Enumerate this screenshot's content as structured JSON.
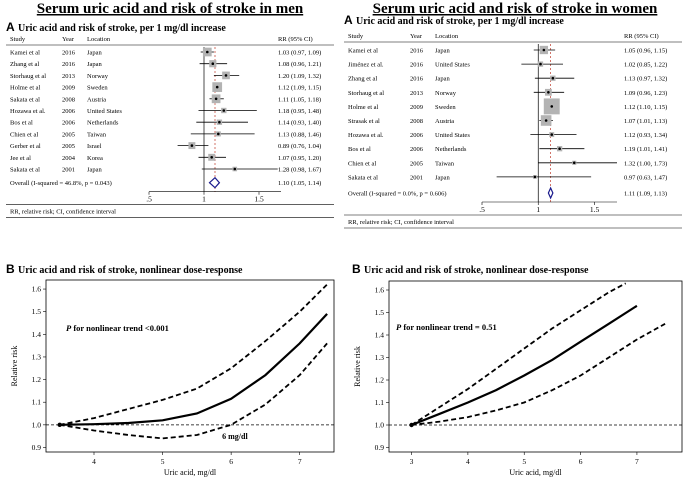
{
  "page": {
    "title_men": "Serum uric acid and risk of stroke in men",
    "title_women": "Serum uric acid and risk of stroke in women"
  },
  "chart_data": [
    {
      "id": "men-forest",
      "type": "forest",
      "panel": "A",
      "title": "Uric acid and risk of stroke, per 1 mg/dl increase",
      "headers": {
        "study": "Study",
        "year": "Year",
        "location": "Location",
        "rr": "RR (95% CI)"
      },
      "xlim": [
        0.5,
        1.7
      ],
      "xticks": [
        0.5,
        1,
        1.5
      ],
      "xtick_labels": [
        ".5",
        "1",
        "1.5"
      ],
      "reference_line": 1,
      "overall_line": 1.1,
      "rows": [
        {
          "study": "Kamei et al",
          "year": "2016",
          "location": "Japan",
          "rr_text": "1.03 (0.97, 1.09)",
          "rr": 1.03,
          "lo": 0.97,
          "hi": 1.09,
          "weight": 2.2
        },
        {
          "study": "Zhang et al",
          "year": "2016",
          "location": "Japan",
          "rr_text": "1.08 (0.96, 1.21)",
          "rr": 1.08,
          "lo": 0.96,
          "hi": 1.21,
          "weight": 1.6
        },
        {
          "study": "Storhaug et al",
          "year": "2013",
          "location": "Norway",
          "rr_text": "1.20 (1.09, 1.32)",
          "rr": 1.2,
          "lo": 1.09,
          "hi": 1.32,
          "weight": 1.8
        },
        {
          "study": "Holme et al",
          "year": "2009",
          "location": "Sweden",
          "rr_text": "1.12 (1.09, 1.15)",
          "rr": 1.12,
          "lo": 1.09,
          "hi": 1.15,
          "weight": 2.6
        },
        {
          "study": "Sakata et al",
          "year": "2008",
          "location": "Austria",
          "rr_text": "1.11 (1.05, 1.18)",
          "rr": 1.11,
          "lo": 1.05,
          "hi": 1.18,
          "weight": 2.2
        },
        {
          "study": "Hozawa et al.",
          "year": "2006",
          "location": "United States",
          "rr_text": "1.18 (0.95, 1.48)",
          "rr": 1.18,
          "lo": 0.95,
          "hi": 1.48,
          "weight": 0.9
        },
        {
          "study": "Bos et al",
          "year": "2006",
          "location": "Netherlands",
          "rr_text": "1.14 (0.93, 1.40)",
          "rr": 1.14,
          "lo": 0.93,
          "hi": 1.4,
          "weight": 0.9
        },
        {
          "study": "Chien et al",
          "year": "2005",
          "location": "Taiwan",
          "rr_text": "1.13 (0.88, 1.46)",
          "rr": 1.13,
          "lo": 0.88,
          "hi": 1.46,
          "weight": 0.8
        },
        {
          "study": "Gerber et al",
          "year": "2005",
          "location": "Israel",
          "rr_text": "0.89 (0.76, 1.04)",
          "rr": 0.89,
          "lo": 0.76,
          "hi": 1.04,
          "weight": 1.5
        },
        {
          "study": "Jee et al",
          "year": "2004",
          "location": "Korea",
          "rr_text": "1.07 (0.95, 1.20)",
          "rr": 1.07,
          "lo": 0.95,
          "hi": 1.2,
          "weight": 1.5
        },
        {
          "study": "Sakata et al",
          "year": "2001",
          "location": "Japan",
          "rr_text": "1.28 (0.98, 1.67)",
          "rr": 1.28,
          "lo": 0.98,
          "hi": 1.67,
          "weight": 0.6
        }
      ],
      "overall": {
        "label": "Overall  (I-squared = 46.8%, p = 0.043)",
        "rr_text": "1.10 (1.05, 1.14)",
        "rr": 1.1,
        "lo": 1.05,
        "hi": 1.14
      },
      "footnote": "RR, relative risk; CI, confidence interval"
    },
    {
      "id": "women-forest",
      "type": "forest",
      "panel": "A",
      "title": "Uric acid and risk of stroke, per 1 mg/dl increase",
      "headers": {
        "study": "Study",
        "year": "Year",
        "location": "Location",
        "rr": "RR (95% CI)"
      },
      "xlim": [
        0.5,
        1.7
      ],
      "xticks": [
        0.5,
        1,
        1.5
      ],
      "xtick_labels": [
        ".5",
        "1",
        "1.5"
      ],
      "reference_line": 1,
      "overall_line": 1.11,
      "rows": [
        {
          "study": "Kamei et al",
          "year": "2016",
          "location": "Japan",
          "rr_text": "1.05 (0.96, 1.15)",
          "rr": 1.05,
          "lo": 0.96,
          "hi": 1.15,
          "weight": 1.4
        },
        {
          "study": "Jiménez et al.",
          "year": "2016",
          "location": "United States",
          "rr_text": "1.02 (0.85, 1.22)",
          "rr": 1.02,
          "lo": 0.85,
          "hi": 1.22,
          "weight": 0.6
        },
        {
          "study": "Zhang et al",
          "year": "2016",
          "location": "Japan",
          "rr_text": "1.13 (0.97, 1.32)",
          "rr": 1.13,
          "lo": 0.97,
          "hi": 1.32,
          "weight": 0.6
        },
        {
          "study": "Storhaug et al",
          "year": "2013",
          "location": "Norway",
          "rr_text": "1.09 (0.96, 1.23)",
          "rr": 1.09,
          "lo": 0.96,
          "hi": 1.23,
          "weight": 1.0
        },
        {
          "study": "Holme et al",
          "year": "2009",
          "location": "Sweden",
          "rr_text": "1.12 (1.10, 1.15)",
          "rr": 1.12,
          "lo": 1.1,
          "hi": 1.15,
          "weight": 3.4
        },
        {
          "study": "Strasak et al",
          "year": "2008",
          "location": "Austria",
          "rr_text": "1.07 (1.01, 1.13)",
          "rr": 1.07,
          "lo": 1.01,
          "hi": 1.13,
          "weight": 2.0
        },
        {
          "study": "Hozawa et al.",
          "year": "2006",
          "location": "United States",
          "rr_text": "1.12 (0.93, 1.34)",
          "rr": 1.12,
          "lo": 0.93,
          "hi": 1.34,
          "weight": 0.5
        },
        {
          "study": "Bos et al",
          "year": "2006",
          "location": "Netherlands",
          "rr_text": "1.19 (1.01, 1.41)",
          "rr": 1.19,
          "lo": 1.01,
          "hi": 1.41,
          "weight": 0.6
        },
        {
          "study": "Chien et al",
          "year": "2005",
          "location": "Taiwan",
          "rr_text": "1.32 (1.00, 1.73)",
          "rr": 1.32,
          "lo": 1.0,
          "hi": 1.73,
          "weight": 0.3
        },
        {
          "study": "Sakata et al",
          "year": "2001",
          "location": "Japan",
          "rr_text": "0.97 (0.63, 1.47)",
          "rr": 0.97,
          "lo": 0.63,
          "hi": 1.47,
          "weight": 0.2
        }
      ],
      "overall": {
        "label": "Overall  (I-squared = 0.0%, p = 0.606)",
        "rr_text": "1.11 (1.09, 1.13)",
        "rr": 1.11,
        "lo": 1.09,
        "hi": 1.13
      },
      "footnote": "RR, relative risk; CI, confidence interval"
    },
    {
      "id": "men-dose",
      "type": "line",
      "panel": "B",
      "title": "Uric acid and risk of stroke, nonlinear dose-response",
      "xlabel": "Uric acid, mg/dl",
      "ylabel": "Relative risk",
      "xlim": [
        3.3,
        7.5
      ],
      "ylim": [
        0.88,
        1.64
      ],
      "xticks": [
        4,
        5,
        6,
        7
      ],
      "yticks": [
        0.9,
        1.0,
        1.1,
        1.2,
        1.3,
        1.4,
        1.5,
        1.6
      ],
      "ytick_labels": [
        "0.9",
        "1.0",
        "1.1",
        "1.2",
        "1.3",
        "1.4",
        "1.5",
        "1.6"
      ],
      "reference_line": 1.0,
      "annotation_italic": "P",
      "annotation_text": " for nonlinear trend <0.001",
      "cutpoint_label": "6 mg/dl",
      "cutpoint": {
        "x": 6.0,
        "y": 1.0
      },
      "series": [
        {
          "name": "estimate",
          "style": "solid",
          "x": [
            3.5,
            4.0,
            4.5,
            5.0,
            5.5,
            6.0,
            6.5,
            7.0,
            7.4
          ],
          "y": [
            1.0,
            1.003,
            1.008,
            1.02,
            1.05,
            1.115,
            1.22,
            1.36,
            1.49
          ]
        },
        {
          "name": "upper 95% CI",
          "style": "dashed",
          "x": [
            3.5,
            4.0,
            4.5,
            5.0,
            5.5,
            6.0,
            6.5,
            7.0,
            7.4
          ],
          "y": [
            1.0,
            1.03,
            1.07,
            1.11,
            1.16,
            1.25,
            1.37,
            1.5,
            1.62
          ]
        },
        {
          "name": "lower 95% CI",
          "style": "dashed",
          "x": [
            3.5,
            4.0,
            4.5,
            5.0,
            5.5,
            6.0,
            6.5,
            7.0,
            7.4
          ],
          "y": [
            1.0,
            0.975,
            0.955,
            0.94,
            0.955,
            1.0,
            1.09,
            1.22,
            1.36
          ]
        }
      ]
    },
    {
      "id": "women-dose",
      "type": "line",
      "panel": "B",
      "title": "Uric acid and risk of stroke, nonlinear dose-response",
      "xlabel": "Uric acid, mg/dl",
      "ylabel": "Relative risk",
      "xlim": [
        2.6,
        7.8
      ],
      "ylim": [
        0.88,
        1.64
      ],
      "xticks": [
        3,
        4,
        5,
        6,
        7
      ],
      "yticks": [
        0.9,
        1.0,
        1.1,
        1.2,
        1.3,
        1.4,
        1.5,
        1.6
      ],
      "ytick_labels": [
        "0.9",
        "1.0",
        "1.1",
        "1.2",
        "1.3",
        "1.4",
        "1.5",
        "1.6"
      ],
      "reference_line": 1.0,
      "annotation_italic": "P",
      "annotation_text": " for nonlinear trend = 0.51",
      "series": [
        {
          "name": "estimate",
          "style": "solid",
          "x": [
            3.0,
            3.5,
            4.0,
            4.5,
            5.0,
            5.5,
            6.0,
            6.5,
            7.0
          ],
          "y": [
            1.0,
            1.05,
            1.1,
            1.155,
            1.22,
            1.29,
            1.37,
            1.45,
            1.53
          ]
        },
        {
          "name": "upper 95% CI",
          "style": "dashed",
          "x": [
            3.0,
            3.5,
            4.0,
            4.5,
            5.0,
            5.5,
            6.0,
            6.5,
            6.8
          ],
          "y": [
            1.0,
            1.08,
            1.16,
            1.25,
            1.34,
            1.43,
            1.51,
            1.59,
            1.63
          ]
        },
        {
          "name": "lower 95% CI",
          "style": "dashed",
          "x": [
            3.0,
            3.5,
            4.0,
            4.5,
            5.0,
            5.5,
            6.0,
            6.5,
            7.0,
            7.5
          ],
          "y": [
            1.0,
            1.015,
            1.035,
            1.065,
            1.1,
            1.155,
            1.22,
            1.3,
            1.38,
            1.45
          ]
        }
      ]
    }
  ]
}
